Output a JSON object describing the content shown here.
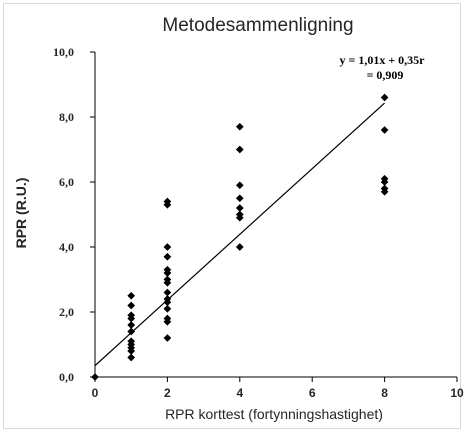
{
  "chart_data": {
    "type": "scatter",
    "title": "Metodesammenligning",
    "xlabel": "RPR korttest (fortynningshastighet)",
    "ylabel": "RPR (R.U.)",
    "xlim": [
      0,
      10
    ],
    "ylim": [
      0,
      10
    ],
    "xticks": [
      0,
      2,
      4,
      6,
      8,
      10
    ],
    "xtick_labels": [
      "0",
      "2",
      "4",
      "6",
      "8",
      "10"
    ],
    "yticks": [
      0,
      2,
      4,
      6,
      8,
      10
    ],
    "ytick_labels": [
      "0,0",
      "2,0",
      "4,0",
      "6,0",
      "8,0",
      "10,0"
    ],
    "grid": false,
    "marker": "diamond",
    "marker_color": "#000000",
    "points": [
      {
        "x": 0,
        "y": 0
      },
      {
        "x": 1,
        "y": 2.5
      },
      {
        "x": 1,
        "y": 2.2
      },
      {
        "x": 1,
        "y": 1.9
      },
      {
        "x": 1,
        "y": 1.8
      },
      {
        "x": 1,
        "y": 1.6
      },
      {
        "x": 1,
        "y": 1.4
      },
      {
        "x": 1,
        "y": 1.1
      },
      {
        "x": 1,
        "y": 1.0
      },
      {
        "x": 1,
        "y": 0.9
      },
      {
        "x": 1,
        "y": 0.8
      },
      {
        "x": 1,
        "y": 0.6
      },
      {
        "x": 2,
        "y": 5.4
      },
      {
        "x": 2,
        "y": 5.3
      },
      {
        "x": 2,
        "y": 4.0
      },
      {
        "x": 2,
        "y": 3.7
      },
      {
        "x": 2,
        "y": 3.3
      },
      {
        "x": 2,
        "y": 3.2
      },
      {
        "x": 2,
        "y": 3.0
      },
      {
        "x": 2,
        "y": 2.9
      },
      {
        "x": 2,
        "y": 2.6
      },
      {
        "x": 2,
        "y": 2.4
      },
      {
        "x": 2,
        "y": 2.3
      },
      {
        "x": 2,
        "y": 2.1
      },
      {
        "x": 2,
        "y": 1.8
      },
      {
        "x": 2,
        "y": 1.7
      },
      {
        "x": 2,
        "y": 1.2
      },
      {
        "x": 4,
        "y": 7.7
      },
      {
        "x": 4,
        "y": 7.0
      },
      {
        "x": 4,
        "y": 5.9
      },
      {
        "x": 4,
        "y": 5.5
      },
      {
        "x": 4,
        "y": 5.2
      },
      {
        "x": 4,
        "y": 5.0
      },
      {
        "x": 4,
        "y": 4.9
      },
      {
        "x": 4,
        "y": 4.0
      },
      {
        "x": 8,
        "y": 8.6
      },
      {
        "x": 8,
        "y": 7.6
      },
      {
        "x": 8,
        "y": 6.1
      },
      {
        "x": 8,
        "y": 6.0
      },
      {
        "x": 8,
        "y": 5.8
      },
      {
        "x": 8,
        "y": 5.7
      }
    ],
    "trendline": {
      "slope": 1.01,
      "intercept": 0.35,
      "x_range": [
        0,
        8
      ]
    },
    "annotation": {
      "line1": "y = 1,01x + 0,35r",
      "line2": "= 0,909"
    }
  }
}
